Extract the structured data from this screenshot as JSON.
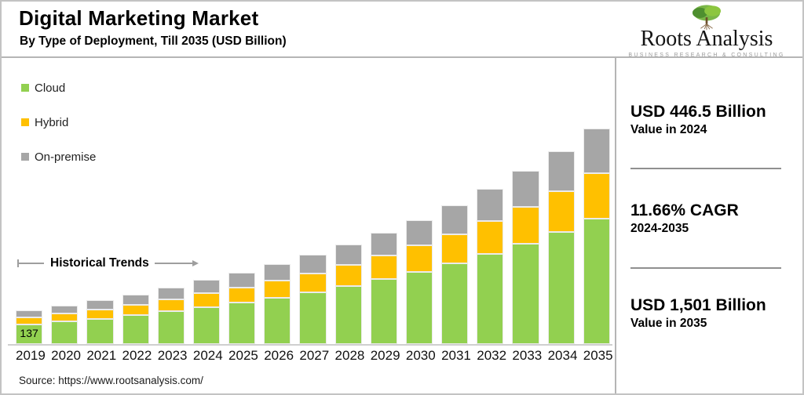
{
  "header": {
    "title": "Digital Marketing Market",
    "subtitle": "By Type of Deployment, Till 2035 (USD Billion)"
  },
  "logo": {
    "name": "Roots Analysis",
    "tagline": "BUSINESS RESEARCH & CONSULTING"
  },
  "annotation": {
    "historical_trends": "Historical Trends"
  },
  "stats": [
    {
      "value": "USD 446.5 Billion",
      "caption": "Value in 2024"
    },
    {
      "value": "11.66% CAGR",
      "caption": "2024-2035"
    },
    {
      "value": "USD 1,501 Billion",
      "caption": "Value in 2035"
    }
  ],
  "source": "Source: https://www.rootsanalysis.com/",
  "chart_data": {
    "type": "bar",
    "stacked": true,
    "title": "Digital Marketing Market",
    "subtitle": "By Type of Deployment, Till 2035 (USD Billion)",
    "unit": "USD Billion",
    "categories": [
      "2019",
      "2020",
      "2021",
      "2022",
      "2023",
      "2024",
      "2025",
      "2026",
      "2027",
      "2028",
      "2029",
      "2030",
      "2031",
      "2032",
      "2033",
      "2034",
      "2035"
    ],
    "series": [
      {
        "name": "Cloud",
        "color": "#92D050",
        "values": [
          137,
          156,
          177,
          201,
          228,
          259,
          290,
          324,
          362,
          404,
          451,
          504,
          563,
          628,
          701,
          783,
          874
        ]
      },
      {
        "name": "Hybrid",
        "color": "#FFC000",
        "values": [
          51,
          57,
          65,
          73,
          83,
          95,
          106,
          118,
          132,
          147,
          164,
          183,
          204,
          228,
          255,
          284,
          318
        ]
      },
      {
        "name": "On-premise",
        "color": "#A6A6A6",
        "values": [
          47,
          55,
          63,
          72,
          82,
          92.5,
          103,
          115,
          128,
          143,
          160,
          178,
          199,
          223,
          249,
          278,
          309
        ]
      }
    ],
    "totals": [
      235,
      268,
      305,
      346,
      393,
      446.5,
      499,
      557,
      622,
      694,
      775,
      865,
      966,
      1079,
      1205,
      1345,
      1501
    ],
    "data_labels": [
      {
        "category": "2019",
        "series": "Cloud",
        "text": "137"
      }
    ],
    "axis": {
      "y_visible": false,
      "grid": false,
      "implied_ylim": [
        0,
        1550
      ]
    },
    "legend_position": "top-left"
  }
}
